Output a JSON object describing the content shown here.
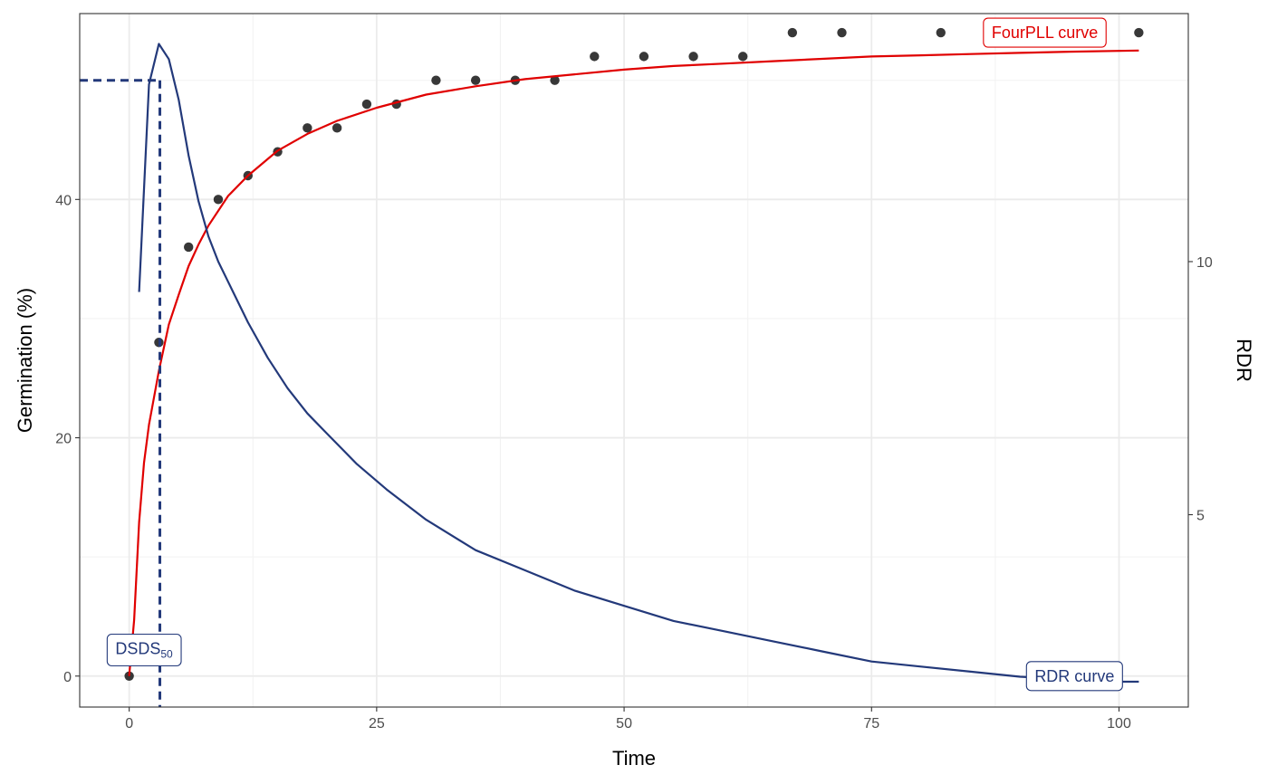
{
  "chart_data": {
    "type": "scatter",
    "xlabel": "Time",
    "ylabel": "Germination (%)",
    "y2label": "RDR",
    "xlim": [
      -5,
      107
    ],
    "ylim": [
      -2.6,
      55.6
    ],
    "y2lim": [
      1.2,
      14.9
    ],
    "x_ticks": [
      0,
      25,
      50,
      75,
      100
    ],
    "y_ticks": [
      0,
      20,
      40
    ],
    "y2_ticks": [
      5,
      10
    ],
    "grid": true,
    "series": [
      {
        "kind": "points",
        "color": "#000000",
        "x": [
          0,
          3,
          6,
          9,
          12,
          15,
          18,
          21,
          24,
          27,
          31,
          35,
          39,
          43,
          47,
          52,
          57,
          62,
          67,
          72,
          82,
          102
        ],
        "y": [
          0,
          28,
          36,
          40,
          42,
          44,
          46,
          46,
          48,
          48,
          50,
          50,
          50,
          50,
          52,
          52,
          52,
          52,
          54,
          54,
          54,
          54
        ]
      },
      {
        "kind": "fitted-line",
        "color": "#e00000",
        "x": [
          0,
          0.5,
          1,
          1.5,
          2,
          3,
          4,
          5,
          6,
          7,
          8,
          10,
          12,
          15,
          18,
          21,
          25,
          30,
          35,
          40,
          45,
          50,
          55,
          60,
          65,
          70,
          75,
          80,
          85,
          90,
          95,
          102
        ],
        "y": [
          0,
          4.7,
          12.9,
          17.9,
          21.1,
          25.6,
          29.5,
          32.0,
          34.4,
          36.2,
          37.8,
          40.3,
          42.0,
          44.1,
          45.5,
          46.6,
          47.7,
          48.8,
          49.5,
          50.1,
          50.5,
          50.9,
          51.2,
          51.4,
          51.6,
          51.8,
          52.0,
          52.1,
          52.2,
          52.3,
          52.4,
          52.5
        ]
      },
      {
        "kind": "rdr-line",
        "axis": "y2",
        "color": "#23397a",
        "x": [
          1,
          2,
          3,
          4,
          5,
          6,
          7,
          8,
          9,
          10,
          12,
          14,
          16,
          18,
          20,
          23,
          26,
          30,
          35,
          40,
          45,
          50,
          55,
          60,
          65,
          70,
          75,
          80,
          85,
          90,
          95,
          100,
          102
        ],
        "y": [
          9.4,
          13.5,
          14.3,
          14.0,
          13.2,
          12.1,
          11.2,
          10.5,
          10.0,
          9.6,
          8.8,
          8.1,
          7.5,
          7.0,
          6.6,
          6.0,
          5.5,
          4.9,
          4.3,
          3.9,
          3.5,
          3.2,
          2.9,
          2.7,
          2.5,
          2.3,
          2.1,
          2.0,
          1.9,
          1.8,
          1.75,
          1.7,
          1.7
        ]
      }
    ],
    "dsds50": {
      "x": 3.1,
      "y": 50,
      "color": "#23397a"
    },
    "annotations": [
      {
        "text": "FourPLL curve",
        "color": "#e00000",
        "x": 92.5,
        "y": 54
      },
      {
        "text": "RDR curve",
        "color": "#23397a",
        "x": 95.5,
        "y": 0
      },
      {
        "text": "DSDS",
        "sub": "50",
        "color": "#23397a",
        "x": 1.5,
        "y": 2.3
      }
    ]
  }
}
